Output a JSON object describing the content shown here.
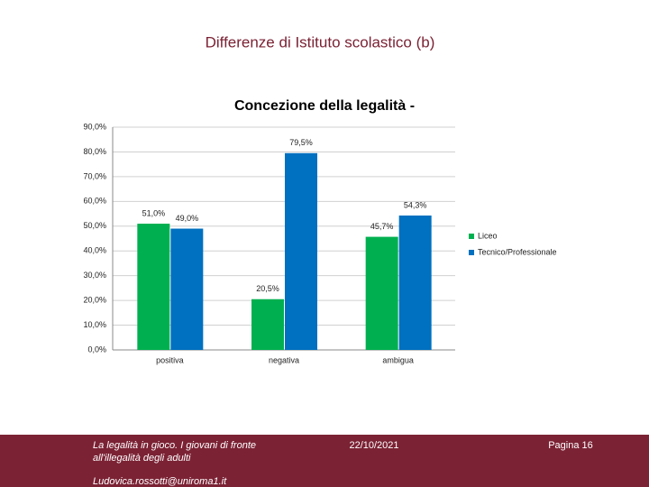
{
  "slide_title": "Differenze di Istituto scolastico (b)",
  "chart_data": {
    "type": "bar",
    "title": "Concezione della legalità -",
    "categories": [
      "positiva",
      "negativa",
      "ambigua"
    ],
    "series": [
      {
        "name": "Liceo",
        "color": "#00b050",
        "values": [
          51.0,
          20.5,
          45.7
        ],
        "value_labels": [
          "51,0%",
          "20,5%",
          "45,7%"
        ]
      },
      {
        "name": "Tecnico/Professionale",
        "color": "#0070c0",
        "values": [
          49.0,
          79.5,
          54.3
        ],
        "value_labels": [
          "49,0%",
          "79,5%",
          "54,3%"
        ]
      }
    ],
    "ylim": [
      0,
      90
    ],
    "yticks": [
      {
        "value": 0,
        "label": "0,0%"
      },
      {
        "value": 10,
        "label": "10,0%"
      },
      {
        "value": 20,
        "label": "20,0%"
      },
      {
        "value": 30,
        "label": "30,0%"
      },
      {
        "value": 40,
        "label": "40,0%"
      },
      {
        "value": 50,
        "label": "50,0%"
      },
      {
        "value": 60,
        "label": "60,0%"
      },
      {
        "value": 70,
        "label": "70,0%"
      },
      {
        "value": 80,
        "label": "80,0%"
      },
      {
        "value": 90,
        "label": "90,0%"
      }
    ],
    "grid": true,
    "legend": "right"
  },
  "footer": {
    "text_lines": [
      "La legalità in gioco. I giovani di fronte",
      "all'illegalità degli adulti"
    ],
    "email": "Ludovica.rossotti@uniroma1.it",
    "date": "22/10/2021",
    "page": "Pagina 16"
  }
}
